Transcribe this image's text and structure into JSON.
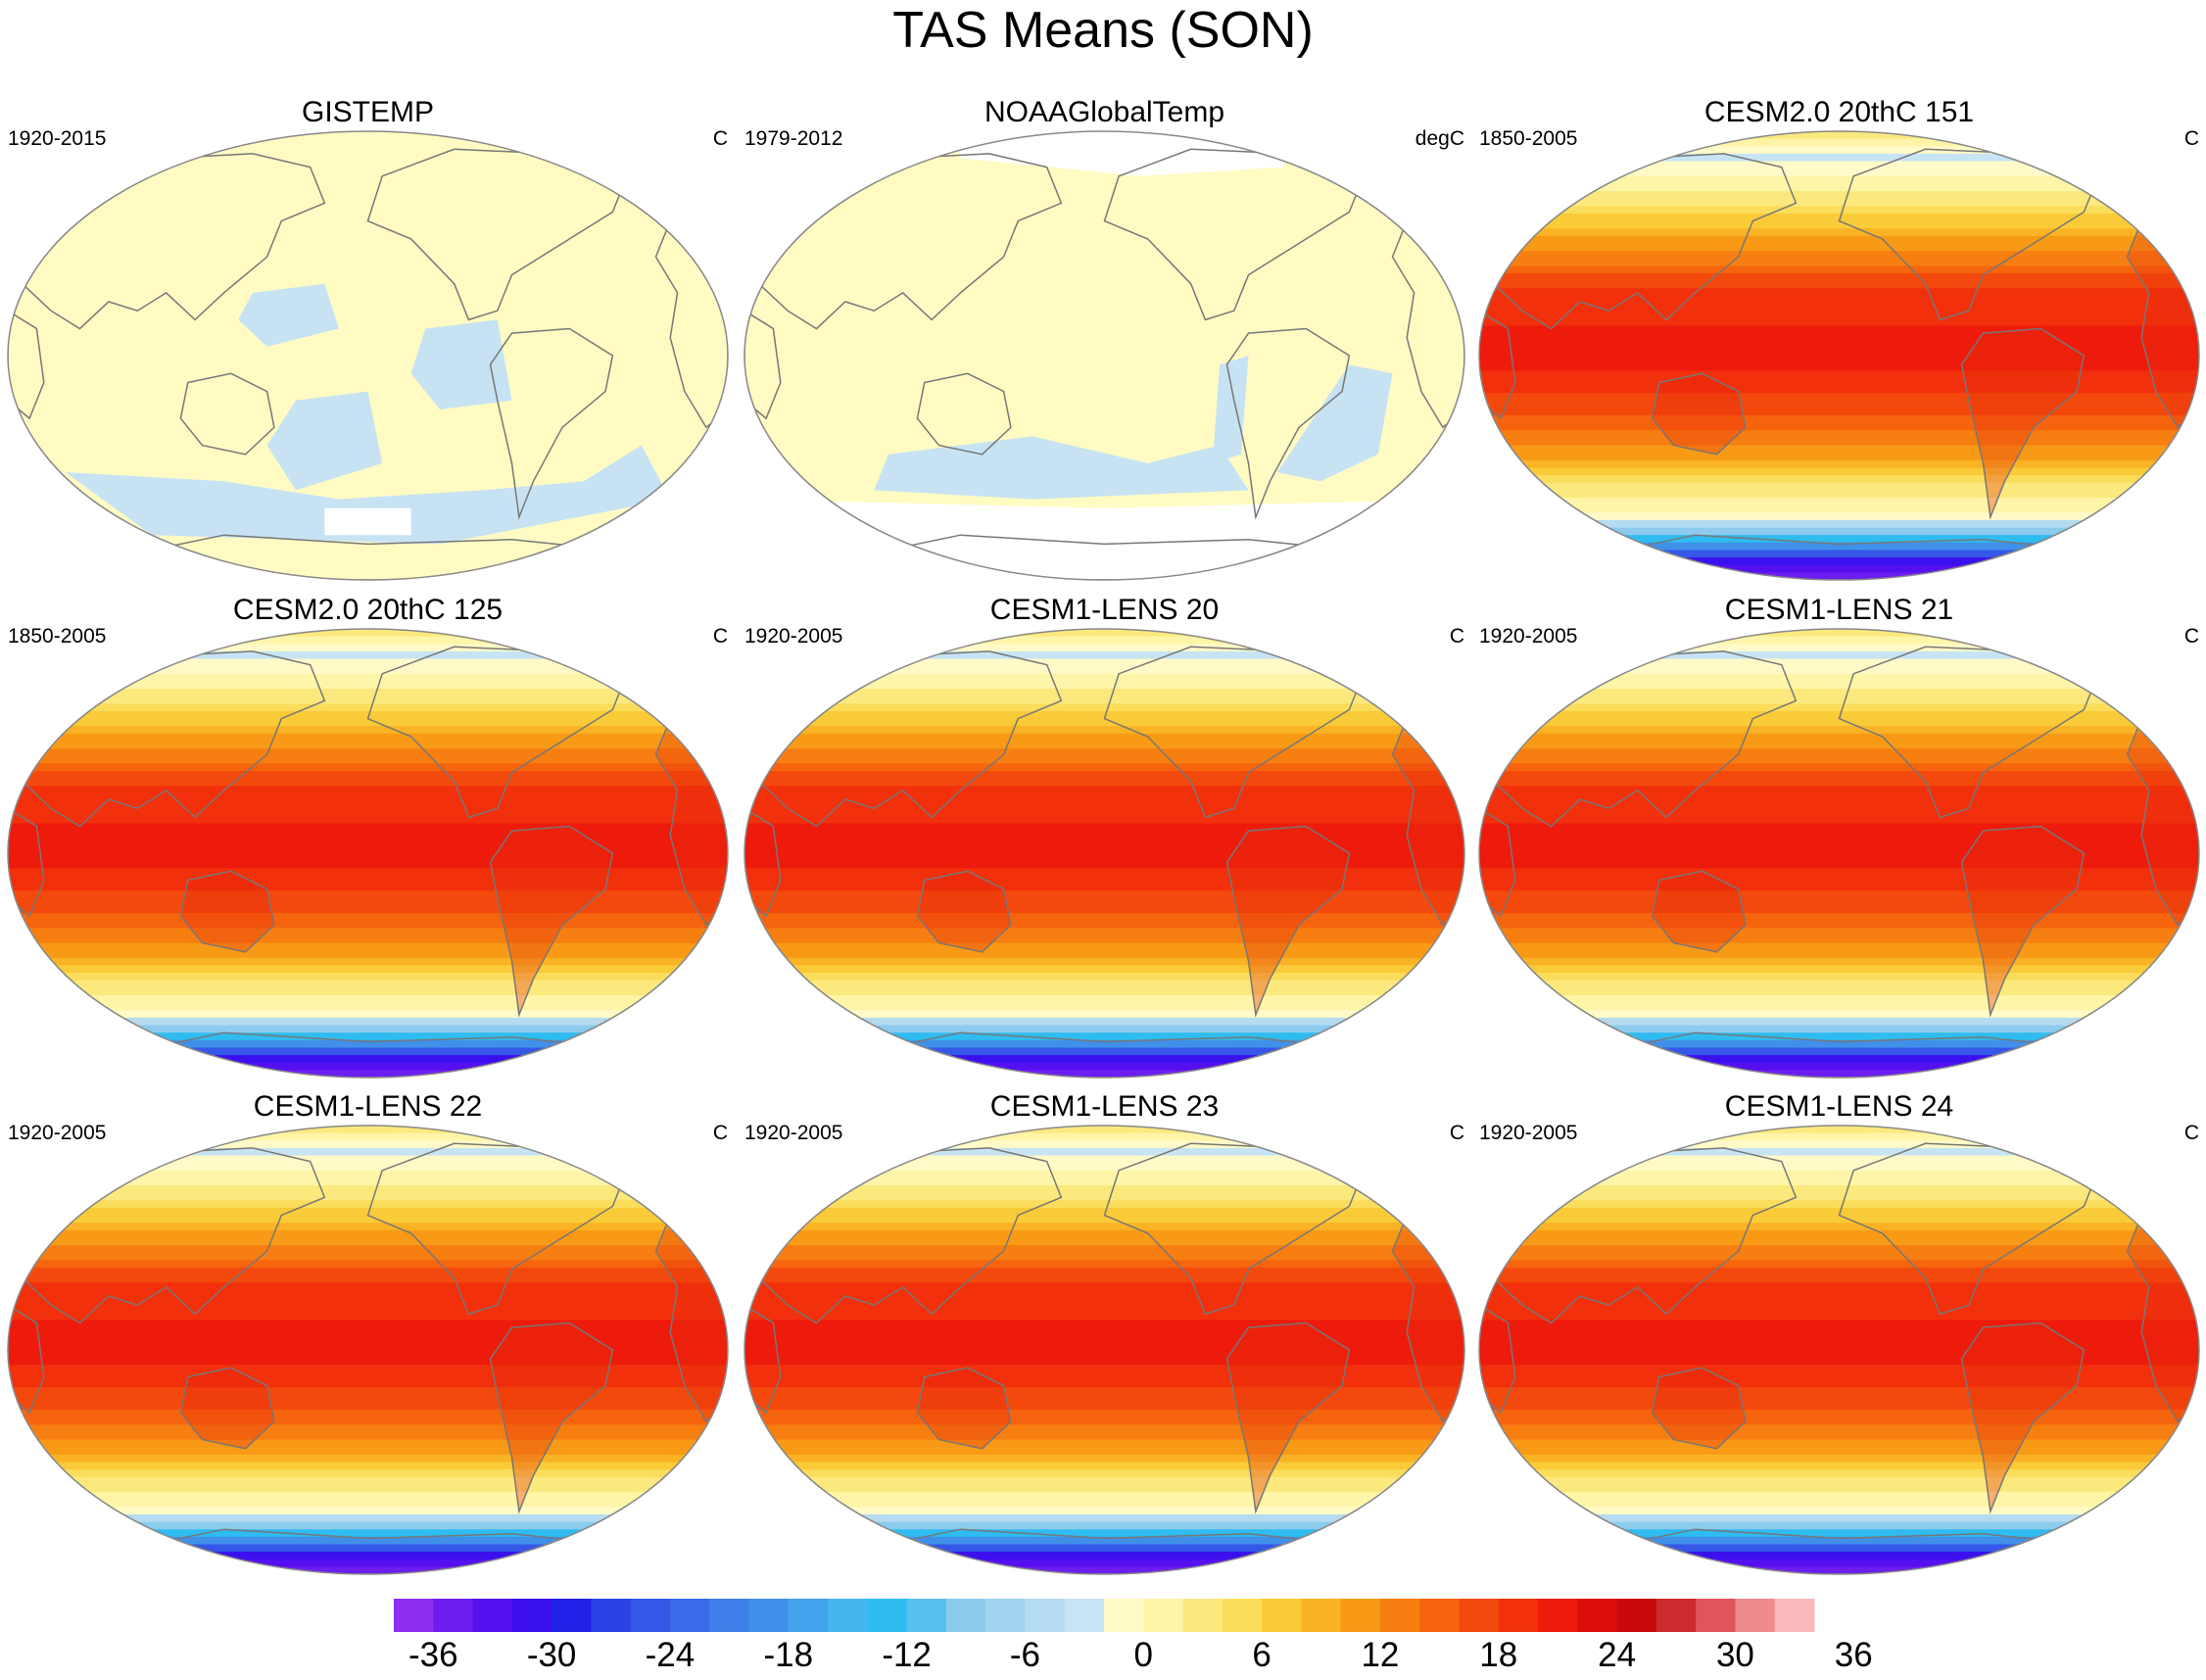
{
  "title": "TAS Means (SON)",
  "panels": [
    {
      "title": "GISTEMP",
      "years": "1920-2015",
      "units": "C",
      "style": "obs",
      "missing": "south-patch"
    },
    {
      "title": "NOAAGlobalTemp",
      "years": "1979-2012",
      "units": "degC",
      "style": "obs",
      "missing": "poles"
    },
    {
      "title": "CESM2.0 20thC 151",
      "years": "1850-2005",
      "units": "C",
      "style": "model"
    },
    {
      "title": "CESM2.0 20thC 125",
      "years": "1850-2005",
      "units": "C",
      "style": "model"
    },
    {
      "title": "CESM1-LENS 20",
      "years": "1920-2005",
      "units": "C",
      "style": "model"
    },
    {
      "title": "CESM1-LENS 21",
      "years": "1920-2005",
      "units": "C",
      "style": "model"
    },
    {
      "title": "CESM1-LENS 22",
      "years": "1920-2005",
      "units": "C",
      "style": "model"
    },
    {
      "title": "CESM1-LENS 23",
      "years": "1920-2005",
      "units": "C",
      "style": "model"
    },
    {
      "title": "CESM1-LENS 24",
      "years": "1920-2005",
      "units": "C",
      "style": "model"
    }
  ],
  "colorbar": {
    "tick_labels": [
      "-36",
      "-30",
      "-24",
      "-18",
      "-12",
      "-6",
      "0",
      "6",
      "12",
      "18",
      "24",
      "30",
      "36"
    ],
    "colors": [
      "#8e2ef0",
      "#6d1df0",
      "#5410ef",
      "#3a10ee",
      "#2020e8",
      "#2a42e6",
      "#3457e8",
      "#3b6ae8",
      "#3f7fe9",
      "#4090ea",
      "#43a2ec",
      "#46b4ef",
      "#2fbcf0",
      "#56c0ee",
      "#8ccbee",
      "#a4d4ef",
      "#b5dbf1",
      "#c6e4f4",
      "#fffac8",
      "#fff5a8",
      "#fbe97e",
      "#fbdd5c",
      "#f9cb38",
      "#f9b324",
      "#f89a16",
      "#f77e10",
      "#f6650e",
      "#f4490c",
      "#f2300c",
      "#ee1a0c",
      "#dc0d0c",
      "#c80a0c",
      "#cc2a2e",
      "#e05559",
      "#ee8a8c",
      "#f9b8b9"
    ]
  }
}
